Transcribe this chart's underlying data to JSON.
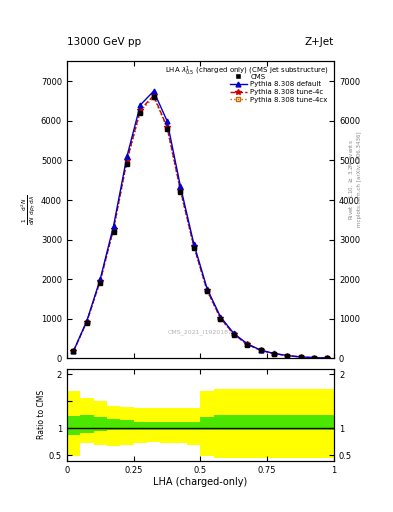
{
  "title_top": "13000 GeV pp",
  "title_right": "Z+Jet",
  "xlabel": "LHA (charged-only)",
  "ylabel2": "Ratio to CMS",
  "cms_label": "CMS_2021_I1920187",
  "x_bins": [
    0.0,
    0.05,
    0.1,
    0.15,
    0.2,
    0.25,
    0.3,
    0.35,
    0.4,
    0.45,
    0.5,
    0.55,
    0.6,
    0.65,
    0.7,
    0.75,
    0.8,
    0.85,
    0.9,
    0.95,
    1.0
  ],
  "cms_y": [
    180,
    900,
    1900,
    3200,
    4900,
    6200,
    6600,
    5800,
    4200,
    2800,
    1700,
    1000,
    600,
    350,
    200,
    120,
    70,
    35,
    18,
    8
  ],
  "pythia_default_y": [
    185,
    950,
    2000,
    3350,
    5100,
    6400,
    6750,
    6000,
    4350,
    2900,
    1760,
    1050,
    630,
    370,
    210,
    125,
    72,
    37,
    19,
    9
  ],
  "pythia_4c_y": [
    182,
    930,
    1960,
    3280,
    5000,
    6280,
    6640,
    5850,
    4260,
    2840,
    1720,
    1015,
    610,
    355,
    204,
    122,
    71,
    36,
    18,
    8.5
  ],
  "pythia_4cx_y": [
    180,
    920,
    1940,
    3250,
    4960,
    6230,
    6600,
    5820,
    4230,
    2810,
    1700,
    1005,
    605,
    352,
    202,
    120,
    70,
    35,
    17.5,
    8.2
  ],
  "ratio_green_lo": [
    0.88,
    0.92,
    0.95,
    0.96,
    0.97,
    0.97,
    0.97,
    0.97,
    0.97,
    0.97,
    0.97,
    0.97,
    0.97,
    0.97,
    0.97,
    0.97,
    0.97,
    0.97,
    0.97,
    0.97
  ],
  "ratio_green_hi": [
    1.22,
    1.25,
    1.2,
    1.18,
    1.15,
    1.12,
    1.12,
    1.12,
    1.12,
    1.12,
    1.2,
    1.25,
    1.25,
    1.25,
    1.25,
    1.25,
    1.25,
    1.25,
    1.25,
    1.25
  ],
  "ratio_yellow_lo": [
    0.48,
    0.72,
    0.7,
    0.68,
    0.7,
    0.72,
    0.75,
    0.72,
    0.72,
    0.7,
    0.48,
    0.45,
    0.45,
    0.45,
    0.45,
    0.45,
    0.45,
    0.45,
    0.45,
    0.45
  ],
  "ratio_yellow_hi": [
    1.68,
    1.55,
    1.5,
    1.42,
    1.4,
    1.38,
    1.38,
    1.38,
    1.38,
    1.38,
    1.68,
    1.72,
    1.72,
    1.72,
    1.72,
    1.72,
    1.72,
    1.72,
    1.72,
    1.72
  ],
  "ylim_main": [
    0,
    7500
  ],
  "ylim_ratio": [
    0.4,
    2.1
  ],
  "yticks_main": [
    0,
    1000,
    2000,
    3000,
    4000,
    5000,
    6000,
    7000
  ],
  "color_default": "#0000CC",
  "color_4c": "#CC0000",
  "color_4cx": "#CC6600",
  "color_cms": "#000000",
  "color_green": "#00DD00",
  "color_yellow": "#FFFF00"
}
